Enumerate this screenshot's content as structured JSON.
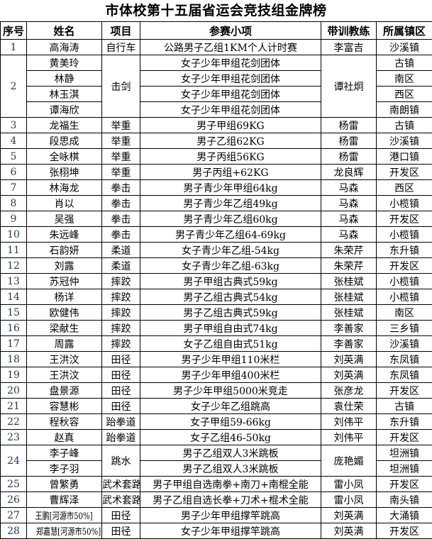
{
  "title": "市体校第十五届省运会竞技组金牌榜",
  "colors": {
    "background": "#ffffff",
    "border": "#000000",
    "body_text": "#000000",
    "serial_number_text": "#1f3a5f"
  },
  "table": {
    "columns": [
      "序号",
      "姓名",
      "项目",
      "参赛小项",
      "带训教练",
      "所属镇区"
    ],
    "rows": [
      {
        "no": "1",
        "sport": "自行车",
        "coach": "李富吉",
        "lines": [
          {
            "name": "高海涛",
            "event": "公路男子乙组1KM个人计时赛",
            "town": "沙溪镇"
          }
        ]
      },
      {
        "no": "2",
        "sport": "击剑",
        "coach": "谭社炯",
        "lines": [
          {
            "name": "黄美玲",
            "event": "女子少年甲组花剑团体",
            "town": "古镇"
          },
          {
            "name": "林静",
            "event": "女子少年甲组花剑团体",
            "town": "南区"
          },
          {
            "name": "林玉淇",
            "event": "女子少年甲组花剑团体",
            "town": "西区"
          },
          {
            "name": "谭海欣",
            "event": "女子少年甲组花剑团体",
            "town": "南朗镇"
          }
        ]
      },
      {
        "no": "3",
        "sport": "举重",
        "coach": "杨雷",
        "lines": [
          {
            "name": "龙福生",
            "event": "男子甲组69KG",
            "town": "古镇"
          }
        ]
      },
      {
        "no": "4",
        "sport": "举重",
        "coach": "杨雷",
        "lines": [
          {
            "name": "段思成",
            "event": "男子乙组62KG",
            "town": "沙溪镇"
          }
        ]
      },
      {
        "no": "5",
        "sport": "举重",
        "coach": "杨雷",
        "lines": [
          {
            "name": "全咏棋",
            "event": "男子丙组56KG",
            "town": "港口镇"
          }
        ]
      },
      {
        "no": "6",
        "sport": "举重",
        "coach": "龙良辉",
        "lines": [
          {
            "name": "张栩坤",
            "event": "男子丙组+62KG",
            "town": "开发区"
          }
        ]
      },
      {
        "no": "7",
        "sport": "拳击",
        "coach": "马森",
        "lines": [
          {
            "name": "林海龙",
            "event": "男子青少年甲组64kg",
            "town": "西区"
          }
        ]
      },
      {
        "no": "8",
        "sport": "拳击",
        "coach": "马森",
        "lines": [
          {
            "name": "肖以",
            "event": "男子青少年乙组49kg",
            "town": "小榄镇"
          }
        ]
      },
      {
        "no": "9",
        "sport": "拳击",
        "coach": "马森",
        "lines": [
          {
            "name": "吴强",
            "event": "男子青少年乙组60kg",
            "town": "开发区"
          }
        ]
      },
      {
        "no": "10",
        "sport": "拳击",
        "coach": "马森",
        "lines": [
          {
            "name": "朱远峰",
            "event": "男子青少年乙组64-69kg",
            "town": "小榄镇"
          }
        ]
      },
      {
        "no": "11",
        "sport": "柔道",
        "coach": "朱荣芹",
        "lines": [
          {
            "name": "石韵妍",
            "event": "女子青少年乙组-54kg",
            "town": "东升镇"
          }
        ]
      },
      {
        "no": "12",
        "sport": "柔道",
        "coach": "朱荣芹",
        "lines": [
          {
            "name": "刘露",
            "event": "女子青少年乙组-63kg",
            "town": "开发区"
          }
        ]
      },
      {
        "no": "13",
        "sport": "摔跤",
        "coach": "张桂斌",
        "lines": [
          {
            "name": "苏冠仲",
            "event": "男子甲组古典式59kg",
            "town": "小榄镇"
          }
        ]
      },
      {
        "no": "14",
        "sport": "摔跤",
        "coach": "张桂斌",
        "lines": [
          {
            "name": "杨详",
            "event": "男子乙组古典式54kg",
            "town": "小榄镇"
          }
        ]
      },
      {
        "no": "15",
        "sport": "摔跤",
        "coach": "张桂斌",
        "lines": [
          {
            "name": "欧健伟",
            "event": "男子乙组古典式59kg",
            "town": "南区"
          }
        ]
      },
      {
        "no": "16",
        "sport": "摔跤",
        "coach": "李善家",
        "lines": [
          {
            "name": "梁献生",
            "event": "男子甲组自由式74kg",
            "town": "三乡镇"
          }
        ]
      },
      {
        "no": "17",
        "sport": "摔跤",
        "coach": "李善家",
        "lines": [
          {
            "name": "周露",
            "event": "女子乙组自由式51kg",
            "town": "沙溪镇"
          }
        ]
      },
      {
        "no": "18",
        "sport": "田径",
        "coach": "刘英满",
        "lines": [
          {
            "name": "王洪汶",
            "event": "男子少年甲组110米栏",
            "town": "东凤镇"
          }
        ]
      },
      {
        "no": "19",
        "sport": "田径",
        "coach": "刘英满",
        "lines": [
          {
            "name": "王洪汶",
            "event": "男子少年甲组400米栏",
            "town": "东凤镇"
          }
        ]
      },
      {
        "no": "20",
        "sport": "田径",
        "coach": "张彦龙",
        "lines": [
          {
            "name": "盘景源",
            "event": "男子少年甲组5000米竞走",
            "town": "开发区"
          }
        ]
      },
      {
        "no": "21",
        "sport": "田径",
        "coach": "袁仕荣",
        "lines": [
          {
            "name": "容慧彬",
            "event": "女子少年乙组跳高",
            "town": "古镇"
          }
        ]
      },
      {
        "no": "22",
        "sport": "跆拳道",
        "coach": "刘伟平",
        "lines": [
          {
            "name": "程秋容",
            "event": "女子甲组59-66kg",
            "town": "东升镇"
          }
        ]
      },
      {
        "no": "23",
        "sport": "跆拳道",
        "coach": "刘伟平",
        "lines": [
          {
            "name": "赵真",
            "event": "女子乙组46-50kg",
            "town": "开发区"
          }
        ]
      },
      {
        "no": "24",
        "sport": "跳水",
        "coach": "庞艳媚",
        "lines": [
          {
            "name": "李子峰",
            "event": "男子乙组双人3米跳板",
            "town": "坦洲镇"
          },
          {
            "name": "李子羽",
            "event": "男子乙组双人3米跳板",
            "town": "坦洲镇"
          }
        ]
      },
      {
        "no": "25",
        "sport": "武术套路",
        "coach": "雷小凤",
        "lines": [
          {
            "name": "曾繁勇",
            "event": "男子甲组自选南拳+南刀+南棍全能",
            "town": "开发区"
          }
        ]
      },
      {
        "no": "26",
        "sport": "武术套路",
        "coach": "雷小凤",
        "lines": [
          {
            "name": "曹辉泽",
            "event": "男子乙组自选长拳+刀术+棍术全能",
            "town": "南头镇"
          }
        ]
      },
      {
        "no": "27",
        "sport": "田径",
        "coach": "刘英满",
        "lines": [
          {
            "name": "王鹏[河源市50%]",
            "event": "男子少年甲组撑竿跳高",
            "town": "大涌镇"
          }
        ]
      },
      {
        "no": "28",
        "sport": "田径",
        "coach": "刘英满",
        "lines": [
          {
            "name": "郑嘉慧[河源市50%]",
            "event": "女子少年甲组撑竿跳高",
            "town": "开发区"
          }
        ]
      }
    ]
  }
}
